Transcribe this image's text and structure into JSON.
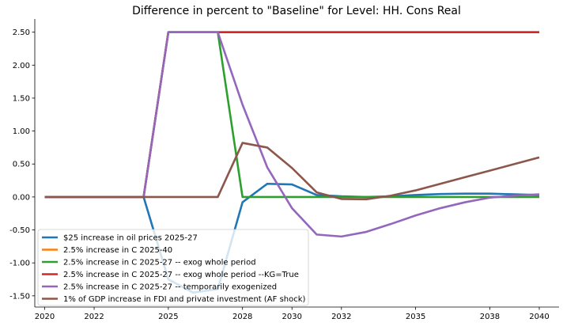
{
  "chart_data": {
    "type": "line",
    "title": "Difference in percent to \"Baseline\" for Level: HH. Cons Real",
    "xlabel": "",
    "ylabel": "",
    "xlim": [
      2019.6,
      2040.8
    ],
    "ylim": [
      -1.67,
      2.7
    ],
    "x_ticks": [
      2020,
      2022,
      2025,
      2028,
      2030,
      2032,
      2035,
      2038,
      2040
    ],
    "x_tick_labels": [
      "2020",
      "2022",
      "2025",
      "2028",
      "2030",
      "2032",
      "2035",
      "2038",
      "2040"
    ],
    "y_ticks": [
      -1.5,
      -1.0,
      -0.5,
      0.0,
      0.5,
      1.0,
      1.5,
      2.0,
      2.5
    ],
    "y_tick_labels": [
      "-1.50",
      "-1.00",
      "-0.50",
      "0.00",
      "0.50",
      "1.00",
      "1.50",
      "2.00",
      "2.50"
    ],
    "grid": false,
    "legend_position": "lower-left",
    "x": [
      2020,
      2021,
      2022,
      2023,
      2024,
      2025,
      2026,
      2027,
      2028,
      2029,
      2030,
      2031,
      2032,
      2033,
      2034,
      2035,
      2036,
      2037,
      2038,
      2039,
      2040
    ],
    "series": [
      {
        "name": "$25 increase in oil prices 2025-27",
        "color": "#1f77b4",
        "values": [
          0,
          0,
          0,
          0,
          0,
          -1.25,
          -1.45,
          -1.4,
          -0.08,
          0.2,
          0.19,
          0.03,
          0.01,
          0.0,
          0.01,
          0.03,
          0.045,
          0.05,
          0.05,
          0.04,
          0.03
        ]
      },
      {
        "name": "2.5% increase in C 2025-40",
        "color": "#ff7f0e",
        "values": [
          0,
          0,
          0,
          0,
          0,
          2.5,
          2.5,
          2.5,
          2.5,
          2.5,
          2.5,
          2.5,
          2.5,
          2.5,
          2.5,
          2.5,
          2.5,
          2.5,
          2.5,
          2.5,
          2.5
        ]
      },
      {
        "name": "2.5% increase in C 2025-27 -- exog whole period",
        "color": "#2ca02c",
        "values": [
          0,
          0,
          0,
          0,
          0,
          2.5,
          2.5,
          2.5,
          0.0,
          0.0,
          0.0,
          0.0,
          0.0,
          0.0,
          0.0,
          0.0,
          0.0,
          0.0,
          0.0,
          0.0,
          0.0
        ]
      },
      {
        "name": "2.5% increase in C 2025-27 -- exog whole period --KG=True",
        "color": "#d62728",
        "values": [
          0,
          0,
          0,
          0,
          0,
          2.5,
          2.5,
          2.5,
          2.5,
          2.5,
          2.5,
          2.5,
          2.5,
          2.5,
          2.5,
          2.5,
          2.5,
          2.5,
          2.5,
          2.5,
          2.5
        ]
      },
      {
        "name": "2.5% increase in C 2025-27 -- temporarily exogenized",
        "color": "#9467bd",
        "values": [
          0,
          0,
          0,
          0,
          0,
          2.5,
          2.5,
          2.5,
          1.4,
          0.45,
          -0.17,
          -0.57,
          -0.6,
          -0.53,
          -0.41,
          -0.28,
          -0.17,
          -0.08,
          -0.01,
          0.02,
          0.04
        ]
      },
      {
        "name": "1% of GDP increase in FDI and private investment (AF shock)",
        "color": "#8c564b",
        "values": [
          0,
          0,
          0,
          0,
          0,
          0,
          0,
          0,
          0.82,
          0.75,
          0.44,
          0.07,
          -0.03,
          -0.035,
          0.02,
          0.1,
          0.2,
          0.3,
          0.4,
          0.5,
          0.6
        ]
      }
    ]
  }
}
